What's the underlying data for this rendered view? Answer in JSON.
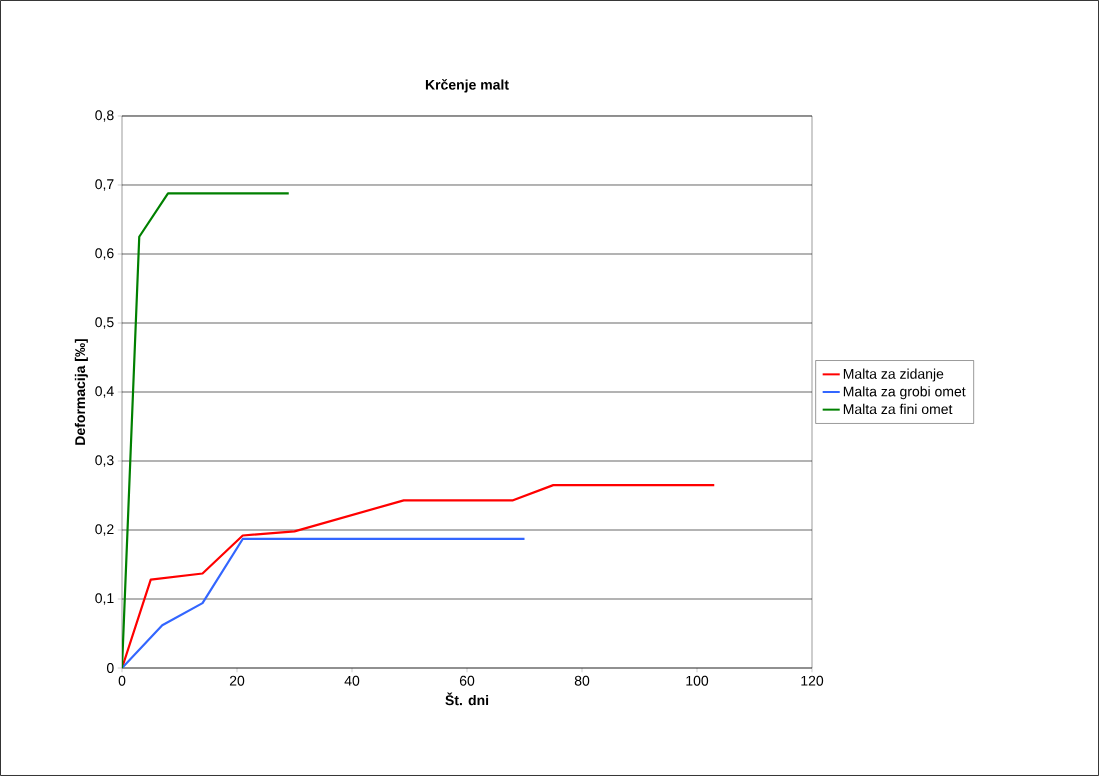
{
  "chart_data": {
    "type": "line",
    "title": "Krčenje malt",
    "xlabel": "Št. dni",
    "ylabel": "Deformacija [‰]",
    "xlim": [
      0,
      120
    ],
    "xticks": [
      0,
      20,
      40,
      60,
      80,
      100,
      120
    ],
    "ylim": [
      0,
      0.8
    ],
    "yticks": [
      0,
      {
        "value": 0.1,
        "label": "0,1"
      },
      {
        "value": 0.2,
        "label": "0,2"
      },
      {
        "value": 0.3,
        "label": "0,3"
      },
      {
        "value": 0.4,
        "label": "0,4"
      },
      {
        "value": 0.5,
        "label": "0,5"
      },
      {
        "value": 0.6,
        "label": "0,6"
      },
      {
        "value": 0.7,
        "label": "0,7"
      },
      {
        "value": 0.8,
        "label": "0,8"
      }
    ],
    "grid": "y",
    "legend": "right",
    "marker": "none",
    "line_style": "solid",
    "series": [
      {
        "name": "Malta za zidanje",
        "color": "#ff0000",
        "x": [
          0,
          5,
          14,
          21,
          30,
          49,
          68,
          75,
          103
        ],
        "values": [
          0,
          0.128,
          0.137,
          0.192,
          0.198,
          0.243,
          0.243,
          0.265,
          0.265
        ]
      },
      {
        "name": "Malta za grobi omet",
        "color": "#3366ff",
        "x": [
          0,
          7,
          14,
          21,
          70
        ],
        "values": [
          0,
          0.062,
          0.094,
          0.187,
          0.187
        ]
      },
      {
        "name": "Malta za fini omet",
        "color": "#008000",
        "x": [
          0,
          3,
          8,
          29
        ],
        "values": [
          0,
          0.625,
          0.688,
          0.688
        ]
      }
    ]
  }
}
